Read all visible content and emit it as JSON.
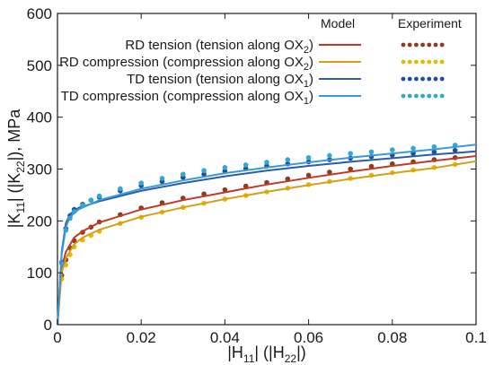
{
  "chart_data": {
    "type": "line",
    "x_ticks": [
      "0",
      "0.02",
      "0.04",
      "0.06",
      "0.08",
      "0.1"
    ],
    "y_ticks": [
      "0",
      "100",
      "200",
      "300",
      "400",
      "500",
      "600"
    ],
    "xlim": [
      0,
      0.1
    ],
    "ylim": [
      0,
      600
    ],
    "grid": false,
    "legend_placement": "top-right",
    "legend_headers": {
      "model": "Model",
      "experiment": "Experiment"
    },
    "axis_title_x": {
      "a": "|H",
      "a_sub": "11",
      "b": "| (|H",
      "b_sub": "22",
      "c": "|)"
    },
    "axis_title_y": {
      "a": "|K",
      "a_sub": "11",
      "b": "| (|K",
      "b_sub": "22",
      "c": "|), MPa"
    },
    "series": [
      {
        "label_main": "RD tension (tension along OX",
        "label_sub": "2",
        "label_end": ")",
        "model_color": "#c0392b",
        "exp_color": "#8e3a1e",
        "model": [
          [
            0,
            0
          ],
          [
            0.001,
            110
          ],
          [
            0.002,
            140
          ],
          [
            0.004,
            168
          ],
          [
            0.006,
            180
          ],
          [
            0.01,
            197
          ],
          [
            0.02,
            222
          ],
          [
            0.03,
            240
          ],
          [
            0.04,
            255
          ],
          [
            0.05,
            270
          ],
          [
            0.06,
            283
          ],
          [
            0.07,
            295
          ],
          [
            0.08,
            306
          ],
          [
            0.09,
            316
          ],
          [
            0.1,
            325
          ]
        ],
        "experiment": [
          [
            0.001,
            95
          ],
          [
            0.002,
            125
          ],
          [
            0.003,
            148
          ],
          [
            0.004,
            162
          ],
          [
            0.006,
            178
          ],
          [
            0.008,
            188
          ],
          [
            0.01,
            198
          ],
          [
            0.015,
            212
          ],
          [
            0.02,
            225
          ],
          [
            0.025,
            235
          ],
          [
            0.03,
            244
          ],
          [
            0.035,
            252
          ],
          [
            0.04,
            260
          ],
          [
            0.045,
            267
          ],
          [
            0.05,
            274
          ],
          [
            0.055,
            281
          ],
          [
            0.06,
            288
          ],
          [
            0.065,
            294
          ],
          [
            0.07,
            300
          ],
          [
            0.075,
            305
          ],
          [
            0.08,
            310
          ],
          [
            0.085,
            314
          ],
          [
            0.09,
            318
          ],
          [
            0.095,
            322
          ]
        ]
      },
      {
        "label_main": "RD compression (compression along OX",
        "label_sub": "2",
        "label_end": ")",
        "model_color": "#d4a017",
        "exp_color": "#e6b800",
        "model": [
          [
            0,
            0
          ],
          [
            0.001,
            100
          ],
          [
            0.002,
            128
          ],
          [
            0.004,
            155
          ],
          [
            0.006,
            168
          ],
          [
            0.01,
            183
          ],
          [
            0.02,
            208
          ],
          [
            0.03,
            226
          ],
          [
            0.04,
            242
          ],
          [
            0.05,
            256
          ],
          [
            0.06,
            269
          ],
          [
            0.07,
            281
          ],
          [
            0.08,
            292
          ],
          [
            0.09,
            302
          ],
          [
            0.1,
            315
          ]
        ],
        "experiment": [
          [
            0.001,
            88
          ],
          [
            0.002,
            115
          ],
          [
            0.003,
            135
          ],
          [
            0.004,
            150
          ],
          [
            0.006,
            163
          ],
          [
            0.008,
            172
          ],
          [
            0.01,
            180
          ],
          [
            0.015,
            195
          ],
          [
            0.02,
            207
          ],
          [
            0.025,
            217
          ],
          [
            0.03,
            226
          ],
          [
            0.035,
            234
          ],
          [
            0.04,
            242
          ],
          [
            0.045,
            249
          ],
          [
            0.05,
            256
          ],
          [
            0.055,
            263
          ],
          [
            0.06,
            270
          ],
          [
            0.065,
            276
          ],
          [
            0.07,
            282
          ],
          [
            0.075,
            288
          ],
          [
            0.08,
            293
          ],
          [
            0.085,
            298
          ],
          [
            0.09,
            303
          ],
          [
            0.095,
            309
          ]
        ]
      },
      {
        "label_main": "TD tension (tension along OX",
        "label_sub": "1",
        "label_end": ")",
        "model_color": "#2a5caa",
        "exp_color": "#1f4e9c",
        "model": [
          [
            0,
            0
          ],
          [
            0.001,
            140
          ],
          [
            0.002,
            195
          ],
          [
            0.003,
            213
          ],
          [
            0.005,
            225
          ],
          [
            0.01,
            238
          ],
          [
            0.02,
            258
          ],
          [
            0.03,
            273
          ],
          [
            0.04,
            286
          ],
          [
            0.05,
            297
          ],
          [
            0.06,
            306
          ],
          [
            0.07,
            314
          ],
          [
            0.08,
            321
          ],
          [
            0.09,
            328
          ],
          [
            0.1,
            334
          ]
        ],
        "experiment": [
          [
            0.001,
            120
          ],
          [
            0.002,
            185
          ],
          [
            0.003,
            210
          ],
          [
            0.004,
            222
          ],
          [
            0.006,
            232
          ],
          [
            0.008,
            240
          ],
          [
            0.01,
            246
          ],
          [
            0.015,
            258
          ],
          [
            0.02,
            268
          ],
          [
            0.025,
            276
          ],
          [
            0.03,
            284
          ],
          [
            0.035,
            290
          ],
          [
            0.04,
            296
          ],
          [
            0.045,
            301
          ],
          [
            0.05,
            306
          ],
          [
            0.055,
            310
          ],
          [
            0.06,
            314
          ],
          [
            0.065,
            318
          ],
          [
            0.07,
            321
          ],
          [
            0.075,
            324
          ],
          [
            0.08,
            327
          ],
          [
            0.085,
            330
          ],
          [
            0.09,
            333
          ],
          [
            0.095,
            336
          ]
        ]
      },
      {
        "label_main": "TD compression (compression along OX",
        "label_sub": "1",
        "label_end": ")",
        "model_color": "#3a9ad9",
        "exp_color": "#2fa8d8",
        "model": [
          [
            0,
            0
          ],
          [
            0.001,
            135
          ],
          [
            0.002,
            188
          ],
          [
            0.003,
            208
          ],
          [
            0.005,
            222
          ],
          [
            0.01,
            240
          ],
          [
            0.02,
            262
          ],
          [
            0.03,
            278
          ],
          [
            0.04,
            292
          ],
          [
            0.05,
            303
          ],
          [
            0.06,
            313
          ],
          [
            0.07,
            322
          ],
          [
            0.08,
            330
          ],
          [
            0.09,
            338
          ],
          [
            0.1,
            347
          ]
        ],
        "experiment": [
          [
            0.001,
            118
          ],
          [
            0.002,
            182
          ],
          [
            0.003,
            205
          ],
          [
            0.004,
            218
          ],
          [
            0.006,
            230
          ],
          [
            0.008,
            240
          ],
          [
            0.01,
            248
          ],
          [
            0.015,
            262
          ],
          [
            0.02,
            273
          ],
          [
            0.025,
            282
          ],
          [
            0.03,
            290
          ],
          [
            0.035,
            297
          ],
          [
            0.04,
            303
          ],
          [
            0.045,
            308
          ],
          [
            0.05,
            313
          ],
          [
            0.055,
            318
          ],
          [
            0.06,
            322
          ],
          [
            0.065,
            326
          ],
          [
            0.07,
            330
          ],
          [
            0.075,
            333
          ],
          [
            0.08,
            337
          ],
          [
            0.085,
            340
          ],
          [
            0.09,
            343
          ],
          [
            0.095,
            346
          ]
        ]
      }
    ]
  }
}
